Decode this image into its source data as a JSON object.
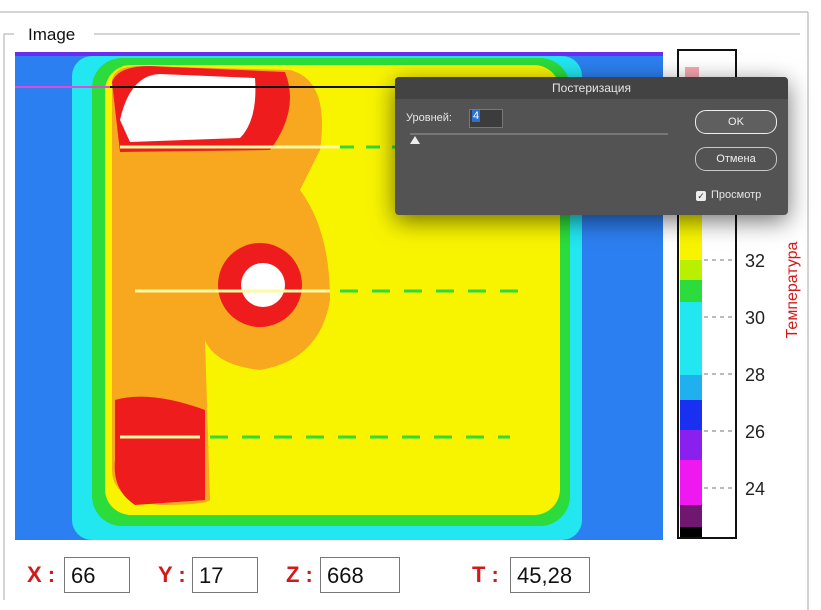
{
  "group_title": "Image",
  "dialog": {
    "title": "Постеризация",
    "levels_label": "Уровней:",
    "levels_value": "4",
    "ok": "OK",
    "cancel": "Отмена",
    "preview": "Просмотр"
  },
  "colorbar": {
    "label": "Температура",
    "ticks": [
      24,
      26,
      28,
      30,
      32
    ]
  },
  "fields": [
    {
      "label": "X :",
      "value": "66"
    },
    {
      "label": "Y :",
      "value": "17"
    },
    {
      "label": "Z :",
      "value": "668"
    },
    {
      "label": "T :",
      "value": "45,28"
    }
  ]
}
